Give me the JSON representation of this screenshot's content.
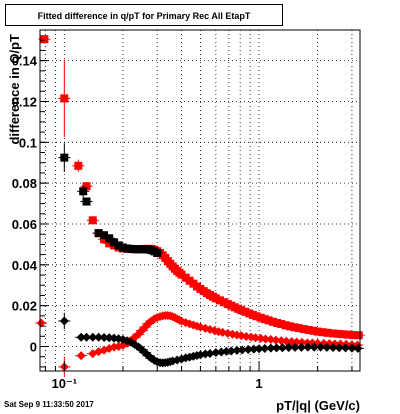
{
  "chart_data": {
    "type": "scatter",
    "title": "Fitted difference in q/pT for Primary Rec All EtapT",
    "xlabel": "pT/|q| (GeV/c)",
    "ylabel": "difference in Q/pT",
    "xscale": "log",
    "xlim": [
      0.075,
      3.3
    ],
    "ylim": [
      -0.012,
      0.155
    ],
    "grid": true,
    "x_ticks": [
      {
        "v": 0.1,
        "label": "10⁻¹"
      },
      {
        "v": 1,
        "label": "1"
      }
    ],
    "y_ticks": [
      {
        "v": 0,
        "label": "0"
      },
      {
        "v": 0.02,
        "label": "0.02"
      },
      {
        "v": 0.04,
        "label": "0.04"
      },
      {
        "v": 0.06,
        "label": "0.06"
      },
      {
        "v": 0.08,
        "label": "0.08"
      },
      {
        "v": 0.1,
        "label": "0.1"
      },
      {
        "v": 0.12,
        "label": "0.12"
      },
      {
        "v": 0.14,
        "label": "0.14"
      }
    ],
    "series": [
      {
        "marker": "square",
        "color": "#ff0000",
        "points": [
          [
            0.079,
            0.1505,
            0.002
          ],
          [
            0.1,
            0.1215,
            0.019
          ],
          [
            0.118,
            0.0885,
            0.003
          ],
          [
            0.13,
            0.0785,
            0.002
          ],
          [
            0.14,
            0.0618,
            0
          ],
          [
            0.15,
            0.0555,
            0
          ],
          [
            0.16,
            0.0525,
            0
          ],
          [
            0.17,
            0.0505,
            0
          ],
          [
            0.18,
            0.0495,
            0
          ],
          [
            0.19,
            0.0485,
            0
          ],
          [
            0.2,
            0.048,
            0
          ],
          [
            0.21,
            0.0478,
            0
          ],
          [
            0.22,
            0.0477,
            0
          ],
          [
            0.23,
            0.0476,
            0
          ],
          [
            0.24,
            0.0476,
            0
          ],
          [
            0.25,
            0.0477,
            0
          ],
          [
            0.26,
            0.0478,
            0
          ],
          [
            0.27,
            0.0478,
            0
          ],
          [
            0.28,
            0.0478,
            0
          ],
          [
            0.29,
            0.0474,
            0
          ],
          [
            0.3,
            0.0467,
            0
          ],
          [
            0.31,
            0.0458,
            0
          ],
          [
            0.32,
            0.0447,
            0
          ],
          [
            0.33,
            0.0434,
            0
          ],
          [
            0.34,
            0.0418,
            0
          ],
          [
            0.35,
            0.0405,
            0
          ],
          [
            0.36,
            0.0392,
            0
          ],
          [
            0.37,
            0.0381,
            0
          ],
          [
            0.38,
            0.037,
            0
          ],
          [
            0.39,
            0.0361,
            0
          ],
          [
            0.4,
            0.0352,
            0
          ],
          [
            0.42,
            0.0337,
            0
          ],
          [
            0.44,
            0.0322,
            0
          ],
          [
            0.46,
            0.0308,
            0
          ],
          [
            0.48,
            0.0294,
            0
          ],
          [
            0.5,
            0.0282,
            0
          ],
          [
            0.52,
            0.0271,
            0
          ],
          [
            0.54,
            0.0261,
            0
          ],
          [
            0.56,
            0.0252,
            0
          ],
          [
            0.58,
            0.0244,
            0
          ],
          [
            0.6,
            0.0236,
            0
          ],
          [
            0.63,
            0.0226,
            0
          ],
          [
            0.66,
            0.0217,
            0
          ],
          [
            0.69,
            0.0208,
            0
          ],
          [
            0.72,
            0.02,
            0
          ],
          [
            0.75,
            0.0192,
            0
          ],
          [
            0.78,
            0.0185,
            0
          ],
          [
            0.81,
            0.0178,
            0
          ],
          [
            0.85,
            0.017,
            0
          ],
          [
            0.89,
            0.0162,
            0
          ],
          [
            0.93,
            0.0155,
            0
          ],
          [
            0.97,
            0.0148,
            0
          ],
          [
            1.02,
            0.0141,
            0
          ],
          [
            1.07,
            0.0134,
            0
          ],
          [
            1.12,
            0.0128,
            0
          ],
          [
            1.18,
            0.0121,
            0
          ],
          [
            1.24,
            0.0115,
            0
          ],
          [
            1.3,
            0.011,
            0
          ],
          [
            1.37,
            0.0104,
            0
          ],
          [
            1.44,
            0.0099,
            0
          ],
          [
            1.52,
            0.0094,
            0
          ],
          [
            1.6,
            0.009,
            0
          ],
          [
            1.7,
            0.0085,
            0
          ],
          [
            1.8,
            0.0081,
            0
          ],
          [
            1.9,
            0.0077,
            0
          ],
          [
            2.0,
            0.0073,
            0
          ],
          [
            2.12,
            0.007,
            0
          ],
          [
            2.25,
            0.0067,
            0
          ],
          [
            2.4,
            0.0064,
            0
          ],
          [
            2.55,
            0.0062,
            0
          ],
          [
            2.7,
            0.006,
            0
          ],
          [
            2.87,
            0.0058,
            0
          ],
          [
            3.05,
            0.0056,
            0
          ],
          [
            3.25,
            0.0055,
            0
          ]
        ]
      },
      {
        "marker": "square",
        "color": "#000000",
        "points": [
          [
            0.1,
            0.0925,
            0.007
          ],
          [
            0.125,
            0.076,
            0.003
          ],
          [
            0.13,
            0.071,
            0.002
          ],
          [
            0.15,
            0.0555,
            0
          ],
          [
            0.16,
            0.0545,
            0
          ],
          [
            0.17,
            0.053,
            0
          ],
          [
            0.18,
            0.051,
            0
          ],
          [
            0.19,
            0.0495,
            0
          ],
          [
            0.2,
            0.0485,
            0
          ],
          [
            0.21,
            0.048,
            0
          ],
          [
            0.22,
            0.0478,
            0
          ],
          [
            0.23,
            0.0477,
            0
          ],
          [
            0.24,
            0.0476,
            0
          ],
          [
            0.25,
            0.0476,
            0
          ],
          [
            0.26,
            0.0476,
            0
          ],
          [
            0.27,
            0.0475,
            0
          ],
          [
            0.28,
            0.0472,
            0
          ],
          [
            0.29,
            0.0466,
            0
          ],
          [
            0.3,
            0.0458,
            0
          ]
        ]
      },
      {
        "marker": "diamond",
        "color": "#ff0000",
        "points": [
          [
            0.076,
            0.0115,
            0
          ],
          [
            0.1,
            -0.01,
            0.005
          ],
          [
            0.122,
            -0.0045,
            0
          ],
          [
            0.14,
            -0.0035,
            0
          ],
          [
            0.15,
            -0.0025,
            0
          ],
          [
            0.16,
            -0.0018,
            0
          ],
          [
            0.17,
            -0.001,
            0
          ],
          [
            0.18,
            -0.0003,
            0
          ],
          [
            0.19,
            0.0,
            0
          ],
          [
            0.2,
            0.0006,
            0
          ],
          [
            0.21,
            0.0015,
            0
          ],
          [
            0.22,
            0.0028,
            0
          ],
          [
            0.23,
            0.0045,
            0
          ],
          [
            0.24,
            0.006,
            0
          ],
          [
            0.25,
            0.0078,
            0
          ],
          [
            0.26,
            0.0095,
            0
          ],
          [
            0.27,
            0.0112,
            0
          ],
          [
            0.28,
            0.0125,
            0
          ],
          [
            0.29,
            0.0135,
            0
          ],
          [
            0.3,
            0.0142,
            0
          ],
          [
            0.31,
            0.0146,
            0
          ],
          [
            0.32,
            0.015,
            0
          ],
          [
            0.33,
            0.0152,
            0
          ],
          [
            0.34,
            0.0152,
            0
          ],
          [
            0.35,
            0.015,
            0
          ],
          [
            0.36,
            0.0146,
            0
          ],
          [
            0.37,
            0.0141,
            0
          ],
          [
            0.38,
            0.0135,
            0
          ],
          [
            0.39,
            0.0129,
            0
          ],
          [
            0.4,
            0.0124,
            0
          ],
          [
            0.42,
            0.0117,
            0
          ],
          [
            0.44,
            0.0111,
            0
          ],
          [
            0.46,
            0.0105,
            0
          ],
          [
            0.48,
            0.01,
            0
          ],
          [
            0.5,
            0.0095,
            0
          ],
          [
            0.53,
            0.0089,
            0
          ],
          [
            0.56,
            0.0083,
            0
          ],
          [
            0.59,
            0.0078,
            0
          ],
          [
            0.62,
            0.0073,
            0
          ],
          [
            0.65,
            0.0069,
            0
          ],
          [
            0.69,
            0.0064,
            0
          ],
          [
            0.73,
            0.006,
            0
          ],
          [
            0.77,
            0.0056,
            0
          ],
          [
            0.81,
            0.0053,
            0
          ],
          [
            0.86,
            0.0049,
            0
          ],
          [
            0.91,
            0.0046,
            0
          ],
          [
            0.96,
            0.0043,
            0
          ],
          [
            1.02,
            0.004,
            0
          ],
          [
            1.08,
            0.0037,
            0
          ],
          [
            1.15,
            0.0034,
            0
          ],
          [
            1.22,
            0.0031,
            0
          ],
          [
            1.3,
            0.0028,
            0
          ],
          [
            1.38,
            0.0026,
            0
          ],
          [
            1.47,
            0.0024,
            0
          ],
          [
            1.56,
            0.0022,
            0
          ],
          [
            1.66,
            0.002,
            0
          ],
          [
            1.77,
            0.0018,
            0
          ],
          [
            1.88,
            0.0017,
            0
          ],
          [
            2.0,
            0.0016,
            0
          ],
          [
            2.15,
            0.0015,
            0
          ],
          [
            2.3,
            0.0014,
            0
          ],
          [
            2.45,
            0.0013,
            0
          ],
          [
            2.62,
            0.0012,
            0
          ],
          [
            2.8,
            0.0011,
            0
          ],
          [
            3.0,
            0.0009,
            0
          ],
          [
            3.2,
            0.0007,
            0
          ]
        ]
      },
      {
        "marker": "diamond",
        "color": "#000000",
        "points": [
          [
            0.1,
            0.0125,
            0.004
          ],
          [
            0.122,
            0.0045,
            0
          ],
          [
            0.13,
            0.0045,
            0
          ],
          [
            0.14,
            0.0045,
            0
          ],
          [
            0.15,
            0.0045,
            0
          ],
          [
            0.16,
            0.0044,
            0
          ],
          [
            0.17,
            0.0043,
            0
          ],
          [
            0.18,
            0.0041,
            0
          ],
          [
            0.19,
            0.0038,
            0
          ],
          [
            0.2,
            0.0034,
            0
          ],
          [
            0.21,
            0.0028,
            0
          ],
          [
            0.22,
            0.002,
            0
          ],
          [
            0.23,
            0.001,
            0
          ],
          [
            0.24,
            -0.0002,
            0
          ],
          [
            0.25,
            -0.0016,
            0
          ],
          [
            0.26,
            -0.003,
            0
          ],
          [
            0.27,
            -0.0045,
            0
          ],
          [
            0.28,
            -0.0058,
            0
          ],
          [
            0.29,
            -0.0068,
            0
          ],
          [
            0.3,
            -0.0075,
            0
          ],
          [
            0.31,
            -0.0079,
            0
          ],
          [
            0.32,
            -0.008,
            0
          ],
          [
            0.33,
            -0.0079,
            0
          ],
          [
            0.34,
            -0.0077,
            0
          ],
          [
            0.35,
            -0.0074,
            0
          ],
          [
            0.36,
            -0.0071,
            0
          ],
          [
            0.38,
            -0.0066,
            0
          ],
          [
            0.4,
            -0.0061,
            0
          ],
          [
            0.42,
            -0.0056,
            0
          ],
          [
            0.44,
            -0.0052,
            0
          ],
          [
            0.46,
            -0.0048,
            0
          ],
          [
            0.48,
            -0.0044,
            0
          ],
          [
            0.5,
            -0.0041,
            0
          ],
          [
            0.53,
            -0.0037,
            0
          ],
          [
            0.56,
            -0.0034,
            0
          ],
          [
            0.6,
            -0.003,
            0
          ],
          [
            0.64,
            -0.0027,
            0
          ],
          [
            0.68,
            -0.0024,
            0
          ],
          [
            0.72,
            -0.0022,
            0
          ],
          [
            0.77,
            -0.0019,
            0
          ],
          [
            0.82,
            -0.0017,
            0
          ],
          [
            0.88,
            -0.0015,
            0
          ],
          [
            0.94,
            -0.0013,
            0
          ],
          [
            1.0,
            -0.0011,
            0
          ],
          [
            1.07,
            -0.001,
            0
          ],
          [
            1.15,
            -0.0008,
            0
          ],
          [
            1.23,
            -0.0007,
            0
          ],
          [
            1.32,
            -0.0006,
            0
          ],
          [
            1.42,
            -0.0005,
            0
          ],
          [
            1.53,
            -0.0004,
            0
          ],
          [
            1.65,
            -0.0004,
            0
          ],
          [
            1.78,
            -0.0003,
            0
          ],
          [
            1.92,
            -0.0003,
            0
          ],
          [
            2.07,
            -0.0003,
            0
          ],
          [
            2.23,
            -0.0004,
            0
          ],
          [
            2.4,
            -0.0005,
            0
          ],
          [
            2.58,
            -0.0006,
            0
          ],
          [
            2.78,
            -0.0007,
            0
          ],
          [
            3.0,
            -0.0008,
            0
          ],
          [
            3.22,
            -0.0009,
            0
          ]
        ]
      }
    ]
  },
  "footer": {
    "timestamp": "Sat Sep  9 11:33:50 2017"
  }
}
